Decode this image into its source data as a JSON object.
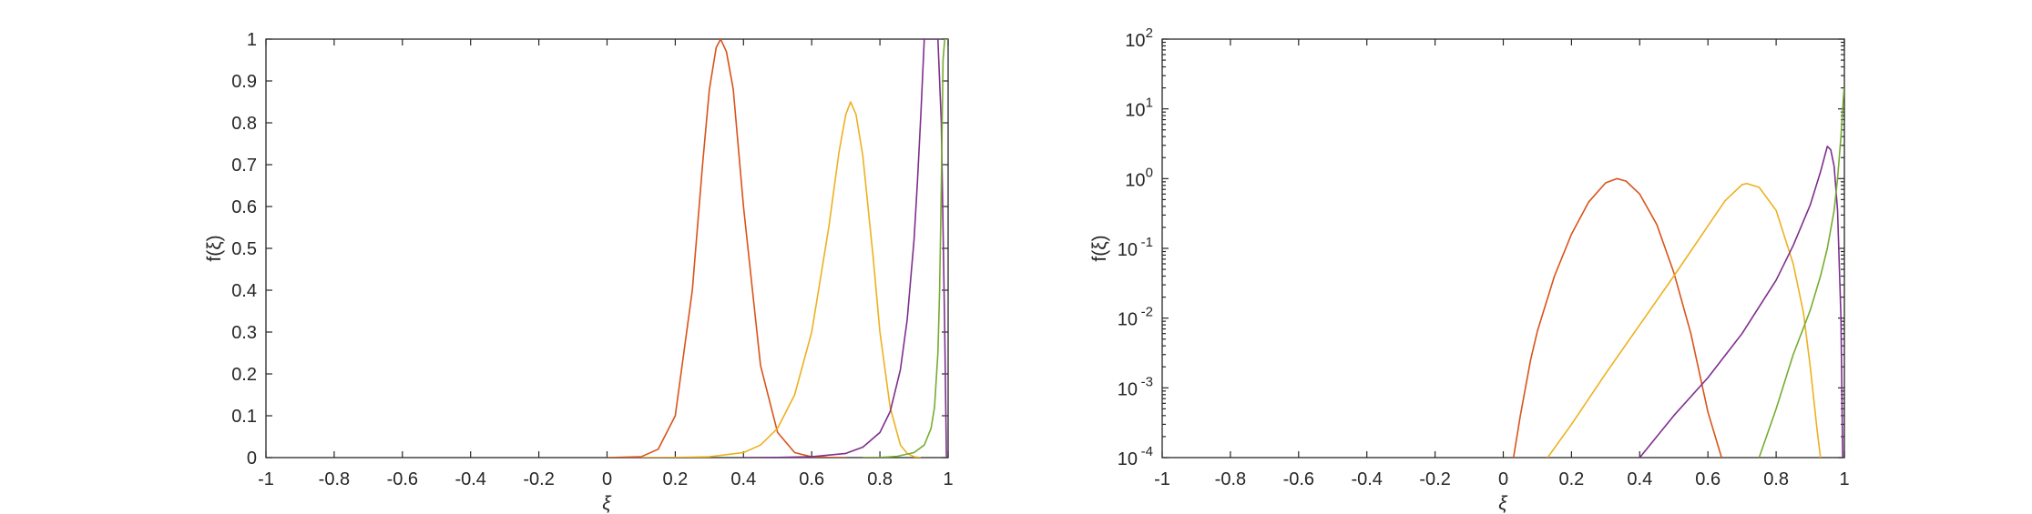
{
  "chart_data": [
    {
      "type": "line",
      "xlabel": "ξ",
      "ylabel": "f(ξ)",
      "xlim": [
        -1,
        1
      ],
      "ylim": [
        0,
        1
      ],
      "yscale": "linear",
      "x_ticks": [
        "-1",
        "-0.8",
        "-0.6",
        "-0.4",
        "-0.2",
        "0",
        "0.2",
        "0.4",
        "0.6",
        "0.8",
        "1"
      ],
      "y_ticks": [
        "0",
        "0.1",
        "0.2",
        "0.3",
        "0.4",
        "0.5",
        "0.6",
        "0.7",
        "0.8",
        "0.9",
        "1"
      ],
      "grid": false,
      "legend": "none",
      "series": [
        {
          "color": "#D95319",
          "x": [
            0.0,
            0.1,
            0.15,
            0.2,
            0.25,
            0.28,
            0.3,
            0.32,
            0.333,
            0.35,
            0.37,
            0.4,
            0.45,
            0.5,
            0.55,
            0.6,
            0.65,
            0.7
          ],
          "y": [
            0.0,
            0.002,
            0.02,
            0.1,
            0.4,
            0.7,
            0.88,
            0.98,
            1.0,
            0.97,
            0.88,
            0.6,
            0.22,
            0.06,
            0.012,
            0.002,
            0.0003,
            0.0
          ]
        },
        {
          "color": "#EDB120",
          "x": [
            0.1,
            0.2,
            0.3,
            0.4,
            0.45,
            0.5,
            0.55,
            0.6,
            0.65,
            0.68,
            0.7,
            0.714,
            0.73,
            0.75,
            0.78,
            0.8,
            0.83,
            0.86,
            0.88,
            0.9,
            0.92
          ],
          "y": [
            0.0,
            0.0003,
            0.002,
            0.012,
            0.03,
            0.07,
            0.15,
            0.3,
            0.55,
            0.73,
            0.82,
            0.85,
            0.82,
            0.72,
            0.48,
            0.3,
            0.12,
            0.03,
            0.01,
            0.002,
            0.0
          ]
        },
        {
          "color": "#7E2F8E",
          "x": [
            0.4,
            0.5,
            0.6,
            0.7,
            0.75,
            0.8,
            0.83,
            0.86,
            0.88,
            0.9,
            0.91,
            0.92,
            0.93,
            0.94,
            0.95,
            0.96,
            0.97,
            0.98,
            0.99,
            0.995
          ],
          "y": [
            0.0,
            0.0003,
            0.002,
            0.01,
            0.025,
            0.06,
            0.11,
            0.21,
            0.33,
            0.52,
            0.66,
            0.82,
            1.0,
            1.0,
            1.0,
            1.0,
            1.0,
            0.8,
            0.3,
            0.0
          ]
        },
        {
          "color": "#77AC30",
          "x": [
            0.75,
            0.8,
            0.85,
            0.9,
            0.93,
            0.95,
            0.96,
            0.97,
            0.975,
            0.98,
            0.985,
            0.99,
            0.993,
            0.996,
            0.998,
            1.0
          ],
          "y": [
            0.0,
            0.0005,
            0.003,
            0.012,
            0.03,
            0.07,
            0.12,
            0.25,
            0.4,
            0.65,
            0.95,
            1.0,
            1.0,
            1.0,
            1.0,
            1.0
          ]
        }
      ]
    },
    {
      "type": "line",
      "xlabel": "ξ",
      "ylabel": "f(ξ)",
      "xlim": [
        -1,
        1
      ],
      "ylim": [
        0.0001,
        100
      ],
      "yscale": "log",
      "x_ticks": [
        "-1",
        "-0.8",
        "-0.6",
        "-0.4",
        "-0.2",
        "0",
        "0.2",
        "0.4",
        "0.6",
        "0.8",
        "1"
      ],
      "y_ticks": [
        {
          "base": "10",
          "exp": "-4"
        },
        {
          "base": "10",
          "exp": "-3"
        },
        {
          "base": "10",
          "exp": "-2"
        },
        {
          "base": "10",
          "exp": "-1"
        },
        {
          "base": "10",
          "exp": "0"
        },
        {
          "base": "10",
          "exp": "1"
        },
        {
          "base": "10",
          "exp": "2"
        }
      ],
      "grid": false,
      "legend": "none",
      "series": [
        {
          "color": "#D95319",
          "x": [
            0.03,
            0.05,
            0.08,
            0.1,
            0.15,
            0.2,
            0.25,
            0.3,
            0.333,
            0.36,
            0.4,
            0.45,
            0.5,
            0.55,
            0.6,
            0.64
          ],
          "y": [
            0.0001,
            0.0004,
            0.0025,
            0.0065,
            0.04,
            0.16,
            0.46,
            0.87,
            1.0,
            0.92,
            0.6,
            0.22,
            0.045,
            0.006,
            0.00045,
            0.0001
          ]
        },
        {
          "color": "#EDB120",
          "x": [
            0.13,
            0.2,
            0.3,
            0.4,
            0.5,
            0.6,
            0.65,
            0.7,
            0.714,
            0.75,
            0.8,
            0.85,
            0.88,
            0.9,
            0.92,
            0.93
          ],
          "y": [
            0.0001,
            0.0003,
            0.0016,
            0.008,
            0.04,
            0.21,
            0.48,
            0.82,
            0.85,
            0.75,
            0.35,
            0.06,
            0.012,
            0.002,
            0.00025,
            0.0001
          ]
        },
        {
          "color": "#7E2F8E",
          "x": [
            0.4,
            0.5,
            0.6,
            0.7,
            0.8,
            0.85,
            0.9,
            0.93,
            0.95,
            0.96,
            0.97,
            0.98,
            0.99,
            0.995
          ],
          "y": [
            0.0001,
            0.0004,
            0.0014,
            0.006,
            0.035,
            0.11,
            0.42,
            1.25,
            2.9,
            2.6,
            1.5,
            0.35,
            0.01,
            0.0001
          ]
        },
        {
          "color": "#77AC30",
          "x": [
            0.75,
            0.8,
            0.85,
            0.9,
            0.93,
            0.95,
            0.97,
            0.98,
            0.99,
            0.995,
            0.999
          ],
          "y": [
            0.0001,
            0.0005,
            0.003,
            0.013,
            0.04,
            0.1,
            0.35,
            1.0,
            4.0,
            10.0,
            20.0
          ]
        }
      ]
    }
  ]
}
